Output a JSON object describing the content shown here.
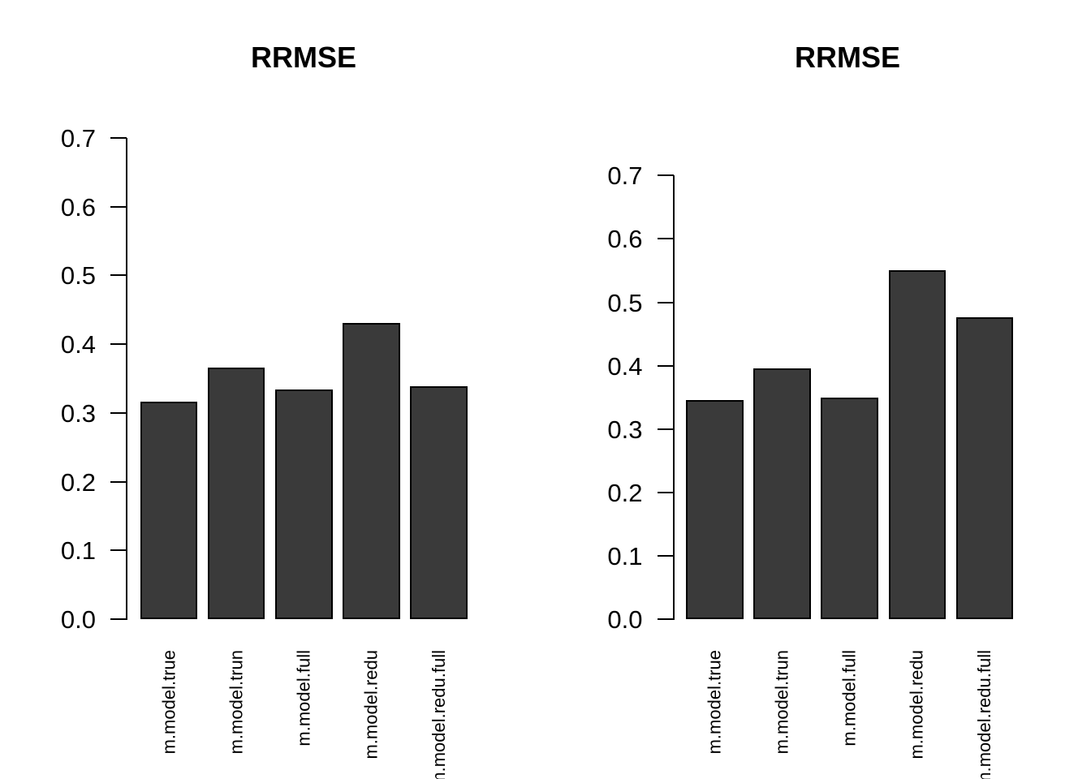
{
  "page": {
    "background": "#ffffff",
    "text_color": "#000000"
  },
  "chart_data": [
    {
      "type": "bar",
      "title": "RRMSE",
      "categories": [
        "m.model.true",
        "m.model.trun",
        "m.model.full",
        "m.model.redu",
        "m.model.redu.full"
      ],
      "values": [
        0.316,
        0.366,
        0.334,
        0.431,
        0.339
      ],
      "xlabel": "",
      "ylabel": "",
      "ylim": [
        0.0,
        0.7
      ],
      "yticks": [
        "0.0",
        "0.1",
        "0.2",
        "0.3",
        "0.4",
        "0.5",
        "0.6",
        "0.7"
      ],
      "grid": false,
      "legend_position": "none",
      "bar_fill": "#3a3a3a",
      "bar_border": "#000000",
      "axis_color": "#000000"
    },
    {
      "type": "bar",
      "title": "RRMSE",
      "categories": [
        "m.model.true",
        "m.model.trun",
        "m.model.full",
        "m.model.redu",
        "m.model.redu.full"
      ],
      "values": [
        0.346,
        0.396,
        0.349,
        0.551,
        0.477
      ],
      "xlabel": "",
      "ylabel": "",
      "ylim": [
        0.0,
        0.7
      ],
      "yticks": [
        "0.0",
        "0.1",
        "0.2",
        "0.3",
        "0.4",
        "0.5",
        "0.6",
        "0.7"
      ],
      "grid": false,
      "legend_position": "none",
      "bar_fill": "#3a3a3a",
      "bar_border": "#000000",
      "axis_color": "#000000"
    }
  ]
}
